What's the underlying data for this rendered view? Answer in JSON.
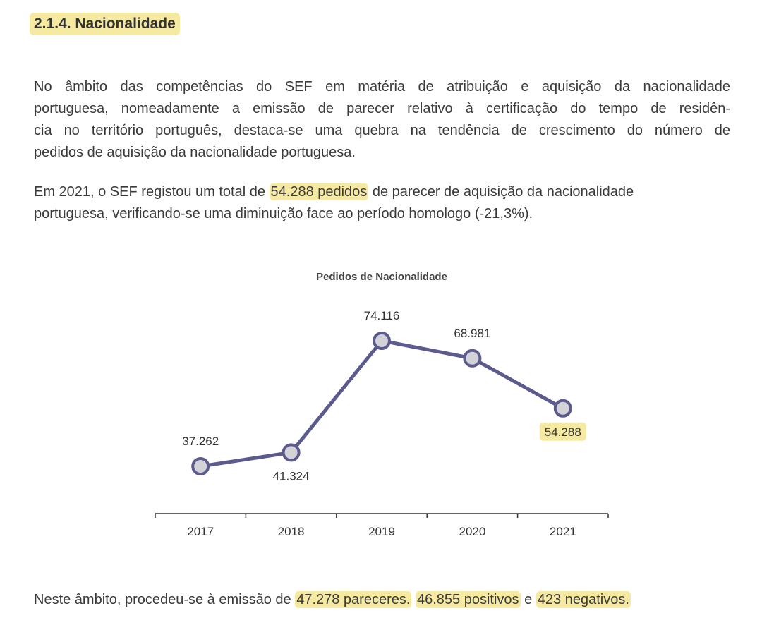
{
  "heading": "2.1.4. Nacionalidade",
  "paragraph1": {
    "lines": [
      "No âmbito das competências do SEF em matéria de atribuição e aquisição da nacionalidade",
      "portuguesa, nomeadamente a emissão de parecer relativo à certificação do tempo de residên-",
      "cia no território português, destaca-se uma quebra na tendência de crescimento do número de",
      "pedidos de aquisição da nacionalidade portuguesa."
    ]
  },
  "paragraph2": {
    "line1_before": "Em 2021, o SEF registou um total de ",
    "line1_highlight": "54.288 pedidos",
    "line1_after": " de parecer de aquisição da nacionalidade",
    "line2": "portuguesa, verificando-se uma diminuição face ao período homologo (-21,3%)."
  },
  "paragraph3": {
    "before": "Neste âmbito, procedeu-se à emissão de ",
    "h1": "47.278 pareceres.",
    "sep": " ",
    "h2": "46.855 positivos",
    "mid": " e ",
    "h3": "423 negativos."
  },
  "colors": {
    "line": "#5b5b8e",
    "marker_fill": "#d2d2d8",
    "highlight": "#f6eaa2"
  },
  "chart_data": {
    "type": "line",
    "title": "Pedidos de Nacionalidade",
    "categories": [
      "2017",
      "2018",
      "2019",
      "2020",
      "2021"
    ],
    "values": [
      37262,
      41324,
      74116,
      68981,
      54288
    ],
    "labels": [
      "37.262",
      "41.324",
      "74.116",
      "68.981",
      "54.288"
    ],
    "label_positions": [
      "above",
      "below",
      "above",
      "above",
      "below"
    ],
    "highlighted_index": 4,
    "xlabel": "",
    "ylabel": "",
    "grid": false,
    "legend": "none"
  }
}
